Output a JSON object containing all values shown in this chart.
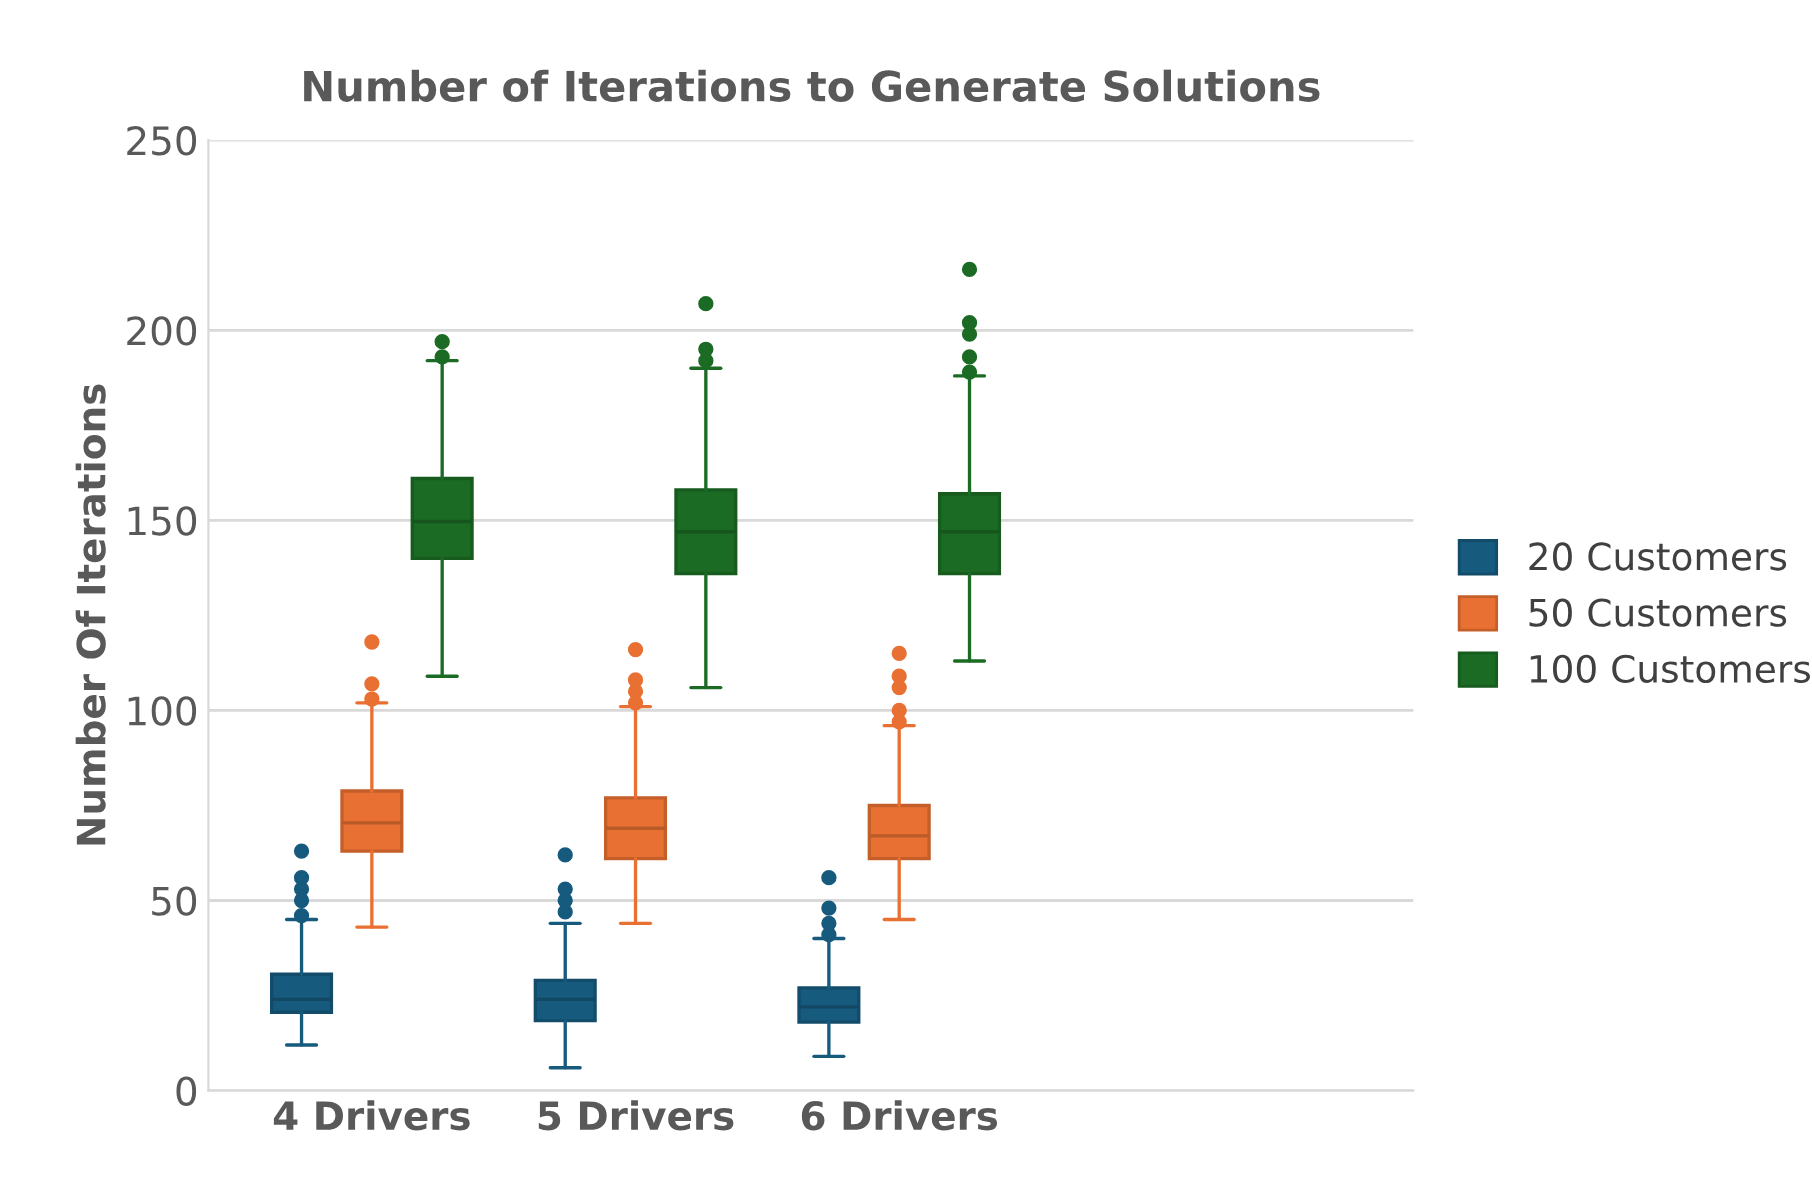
{
  "chart_data": {
    "type": "box",
    "title": "Number of Iterations to Generate Solutions",
    "ylabel": "Number Of Iterations",
    "categories": [
      "4 Drivers",
      "5 Drivers",
      "6 Drivers"
    ],
    "ylim": [
      0,
      250
    ],
    "yticks": [
      0,
      50,
      100,
      150,
      200,
      250
    ],
    "grid": "y",
    "legend": "right",
    "series": [
      {
        "name": "20 Customers",
        "color": "#165a7d",
        "boxes": [
          {
            "low": 12,
            "q1": 20.6,
            "median": 24,
            "q3": 30.6,
            "high": 45,
            "outliers": [
              46,
              50,
              53,
              56,
              63
            ]
          },
          {
            "low": 6,
            "q1": 18.4,
            "median": 24,
            "q3": 29,
            "high": 44,
            "outliers": [
              47,
              50,
              53,
              62
            ]
          },
          {
            "low": 9,
            "q1": 18,
            "median": 22,
            "q3": 27,
            "high": 40,
            "outliers": [
              41,
              44,
              48,
              56
            ]
          }
        ]
      },
      {
        "name": "50 Customers",
        "color": "#e87032",
        "boxes": [
          {
            "low": 43,
            "q1": 63,
            "median": 70.4,
            "q3": 78.8,
            "high": 102,
            "outliers": [
              103,
              107,
              118
            ]
          },
          {
            "low": 44,
            "q1": 61,
            "median": 69,
            "q3": 77,
            "high": 101,
            "outliers": [
              102,
              105,
              108,
              116
            ]
          },
          {
            "low": 45,
            "q1": 61,
            "median": 67,
            "q3": 75,
            "high": 96,
            "outliers": [
              97,
              100,
              106,
              109,
              115
            ]
          }
        ]
      },
      {
        "name": "100 Customers",
        "color": "#1b6b24",
        "boxes": [
          {
            "low": 109,
            "q1": 140,
            "median": 149.7,
            "q3": 161,
            "high": 192,
            "outliers": [
              193,
              197
            ]
          },
          {
            "low": 106,
            "q1": 136,
            "median": 147,
            "q3": 158,
            "high": 190,
            "outliers": [
              192,
              195,
              207
            ]
          },
          {
            "low": 113,
            "q1": 136,
            "median": 147,
            "q3": 157,
            "high": 188,
            "outliers": [
              189,
              193,
              199,
              202,
              216
            ]
          }
        ]
      }
    ]
  }
}
